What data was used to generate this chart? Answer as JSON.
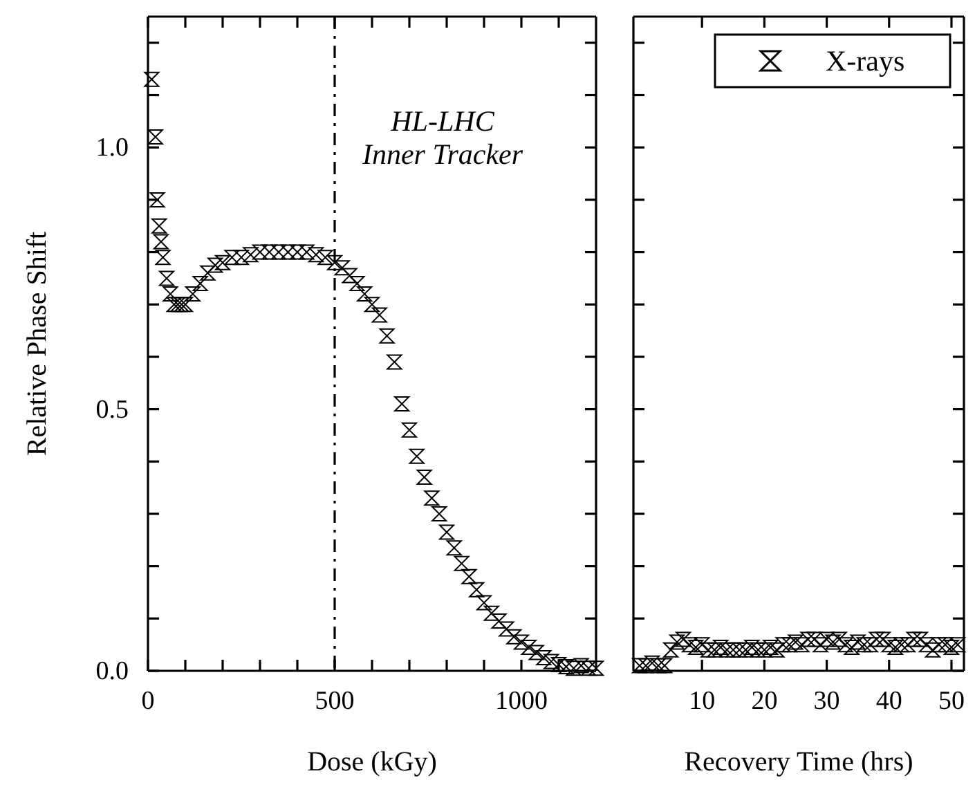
{
  "chart_data": [
    {
      "type": "scatter",
      "xlabel": "Dose (kGy)",
      "ylabel": "Relative Phase Shift",
      "xlim": [
        0,
        1200
      ],
      "ylim": [
        0,
        1.25
      ],
      "xticks": [
        0,
        {
          "value": 100,
          "label": null
        },
        {
          "value": 200,
          "label": null
        },
        {
          "value": 300,
          "label": null
        },
        {
          "value": 400,
          "label": null
        },
        500,
        {
          "value": 600,
          "label": null
        },
        {
          "value": 700,
          "label": null
        },
        {
          "value": 800,
          "label": null
        },
        {
          "value": 900,
          "label": null
        },
        1000,
        {
          "value": 1100,
          "label": null
        }
      ],
      "yticks": [
        {
          "value": 0,
          "label": "0.0"
        },
        {
          "value": 0.1,
          "label": null
        },
        {
          "value": 0.2,
          "label": null
        },
        {
          "value": 0.3,
          "label": null
        },
        {
          "value": 0.4,
          "label": null
        },
        {
          "value": 0.5,
          "label": "0.5"
        },
        {
          "value": 0.6,
          "label": null
        },
        {
          "value": 0.7,
          "label": null
        },
        {
          "value": 0.8,
          "label": null
        },
        {
          "value": 0.9,
          "label": null
        },
        {
          "value": 1,
          "label": "1.0"
        },
        {
          "value": 1.1,
          "label": null
        },
        {
          "value": 1.2,
          "label": null
        }
      ],
      "marker": "triangle",
      "grid": false,
      "legend": false,
      "ref_lines": [
        {
          "axis": "x",
          "value": 500,
          "label": "HL-LHC\nInner Tracker",
          "color": "#000000",
          "line_style": "dashed"
        }
      ],
      "series": [
        {
          "color": "#000000",
          "x": [
            10,
            20,
            25,
            30,
            35,
            40,
            50,
            60,
            70,
            80,
            90,
            100,
            120,
            140,
            160,
            180,
            200,
            225,
            250,
            275,
            300,
            325,
            350,
            375,
            400,
            425,
            450,
            475,
            500,
            520,
            540,
            560,
            580,
            600,
            620,
            640,
            660,
            680,
            700,
            720,
            740,
            760,
            780,
            800,
            820,
            840,
            860,
            880,
            900,
            920,
            940,
            960,
            980,
            1000,
            1020,
            1040,
            1060,
            1080,
            1100,
            1120,
            1140,
            1160,
            1180,
            1200
          ],
          "values": [
            1.13,
            1.02,
            0.9,
            0.85,
            0.82,
            0.79,
            0.75,
            0.72,
            0.7,
            0.7,
            0.7,
            0.7,
            0.72,
            0.74,
            0.76,
            0.775,
            0.78,
            0.79,
            0.79,
            0.795,
            0.8,
            0.8,
            0.8,
            0.8,
            0.8,
            0.8,
            0.795,
            0.79,
            0.78,
            0.77,
            0.755,
            0.74,
            0.72,
            0.7,
            0.68,
            0.64,
            0.59,
            0.51,
            0.46,
            0.41,
            0.37,
            0.33,
            0.3,
            0.265,
            0.235,
            0.205,
            0.18,
            0.155,
            0.13,
            0.11,
            0.095,
            0.08,
            0.065,
            0.055,
            0.045,
            0.035,
            0.025,
            0.018,
            0.012,
            0.008,
            0.005,
            0.01,
            0.005,
            0.005
          ]
        }
      ]
    },
    {
      "type": "scatter",
      "xlabel": "Recovery Time (hrs)",
      "xlim": [
        -1,
        52
      ],
      "ylim": [
        0,
        1.25
      ],
      "tick_labels": "x",
      "xticks": [
        10,
        20,
        30,
        40,
        50
      ],
      "yticks": [
        {
          "value": 0,
          "label": null
        },
        {
          "value": 0.1,
          "label": null
        },
        {
          "value": 0.2,
          "label": null
        },
        {
          "value": 0.3,
          "label": null
        },
        {
          "value": 0.4,
          "label": null
        },
        {
          "value": 0.5,
          "label": null
        },
        {
          "value": 0.6,
          "label": null
        },
        {
          "value": 0.7,
          "label": null
        },
        {
          "value": 0.8,
          "label": null
        },
        {
          "value": 0.9,
          "label": null
        },
        {
          "value": 1,
          "label": null
        },
        {
          "value": 1.1,
          "label": null
        },
        {
          "value": 1.2,
          "label": null
        }
      ],
      "marker": "triangle",
      "grid": false,
      "legend": "top right",
      "series": [
        {
          "name": "X-rays",
          "color": "#000000",
          "x": [
            0,
            1,
            2,
            3,
            4,
            5,
            6,
            7,
            8,
            9,
            10,
            11,
            12,
            13,
            14,
            15,
            16,
            17,
            18,
            19,
            20,
            21,
            22,
            23,
            24,
            25,
            26,
            27,
            28,
            29,
            30,
            31,
            32,
            33,
            34,
            35,
            36,
            37,
            38,
            39,
            40,
            41,
            42,
            43,
            44,
            45,
            46,
            47,
            48,
            49,
            50,
            51
          ],
          "values": [
            0.01,
            0.01,
            0.015,
            0.01,
            0.01,
            0.04,
            0.055,
            0.06,
            0.05,
            0.045,
            0.05,
            0.04,
            0.04,
            0.045,
            0.04,
            0.04,
            0.04,
            0.04,
            0.045,
            0.04,
            0.04,
            0.045,
            0.04,
            0.05,
            0.05,
            0.055,
            0.05,
            0.06,
            0.06,
            0.05,
            0.06,
            0.055,
            0.06,
            0.05,
            0.045,
            0.055,
            0.05,
            0.05,
            0.06,
            0.06,
            0.05,
            0.045,
            0.05,
            0.05,
            0.06,
            0.06,
            0.05,
            0.04,
            0.05,
            0.05,
            0.045,
            0.05
          ]
        }
      ]
    }
  ]
}
